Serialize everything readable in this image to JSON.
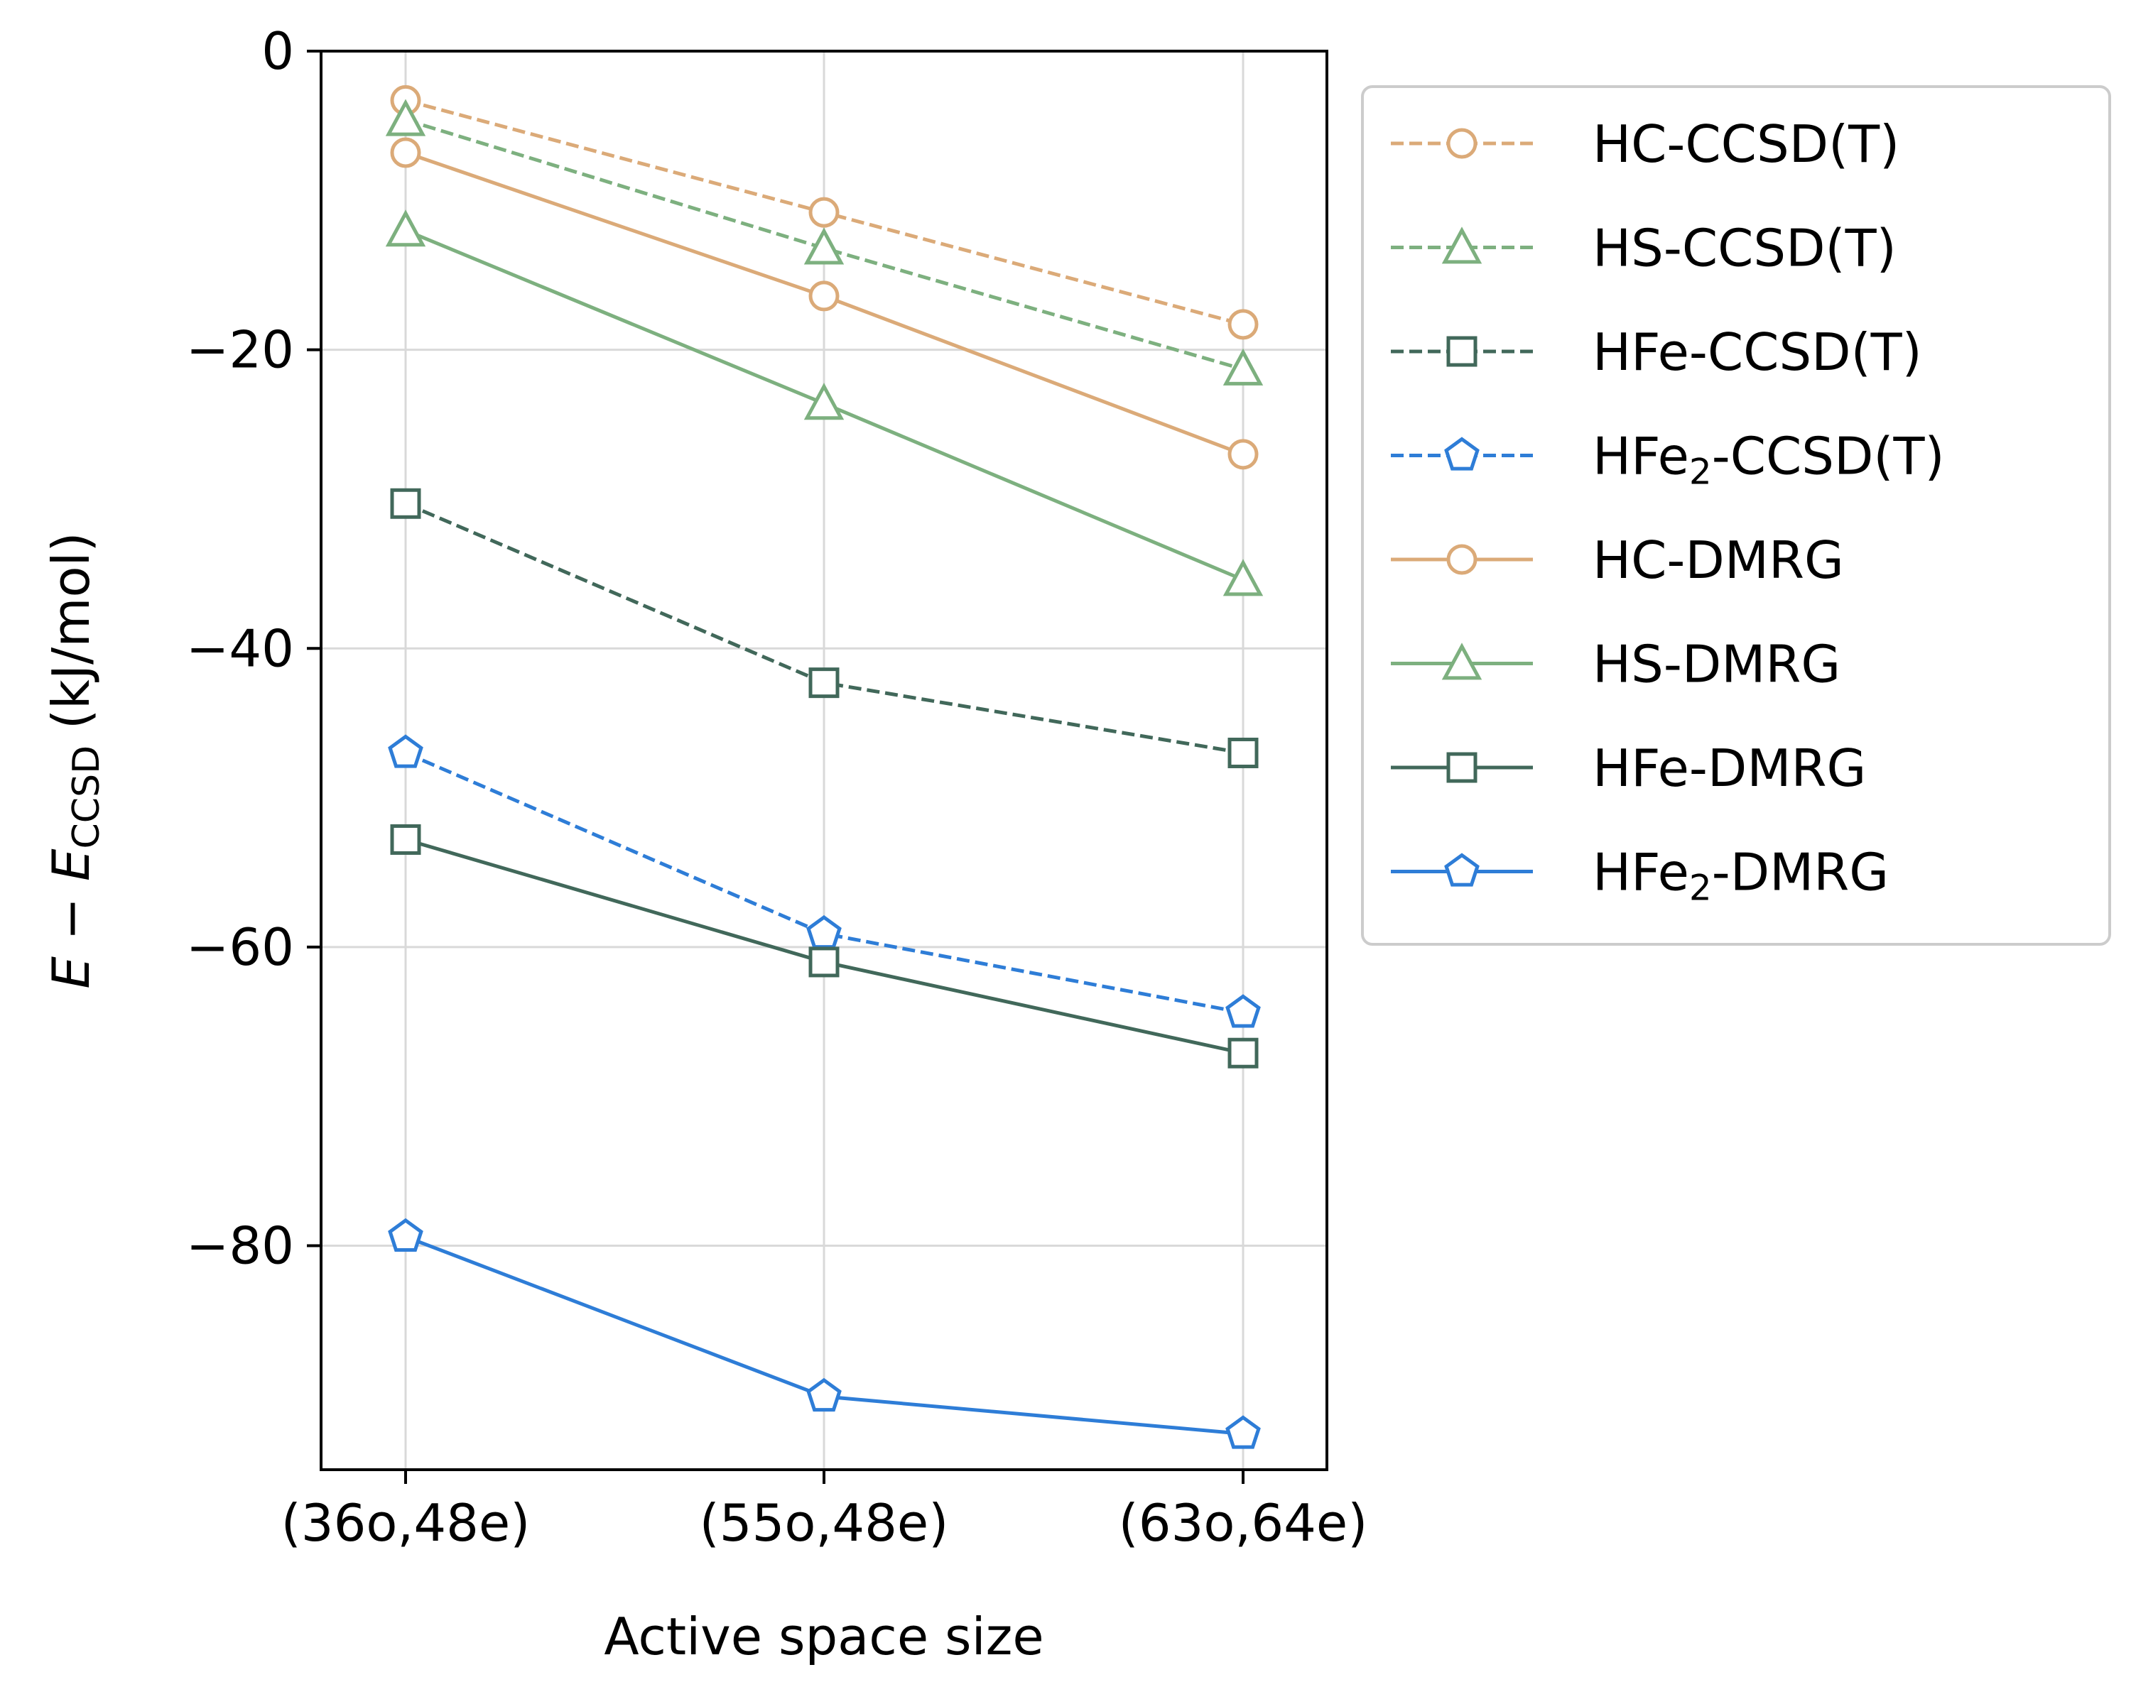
{
  "chart_data": {
    "type": "line",
    "title": "",
    "xlabel": "Active space size",
    "ylabel": {
      "italic_E": "E",
      "minus": " − ",
      "italic_E2": "E",
      "sub": "CCSD",
      "unit": " (kJ/mol)"
    },
    "categories": [
      "(36o,48e)",
      "(55o,48e)",
      "(63o,64e)"
    ],
    "ylim": [
      -95,
      0
    ],
    "yticks": [
      0,
      -20,
      -40,
      -60,
      -80
    ],
    "ytick_labels": [
      "0",
      "−20",
      "−40",
      "−60",
      "−80"
    ],
    "grid": true,
    "legend_position": "outside-top-right",
    "series": [
      {
        "name": "HC-CCSD(T)",
        "label_main": "HC-CCSD(T)",
        "label_sub": "",
        "label_rest": "",
        "values": [
          -3.3,
          -10.8,
          -18.3
        ],
        "color": "#DBAA78",
        "dashed": true,
        "marker": "circle"
      },
      {
        "name": "HS-CCSD(T)",
        "label_main": "HS-CCSD(T)",
        "label_sub": "",
        "label_rest": "",
        "values": [
          -4.6,
          -13.2,
          -21.3
        ],
        "color": "#7DB07F",
        "dashed": true,
        "marker": "triangle"
      },
      {
        "name": "HFe-CCSD(T)",
        "label_main": "HFe-CCSD(T)",
        "label_sub": "",
        "label_rest": "",
        "values": [
          -30.3,
          -42.3,
          -47.0
        ],
        "color": "#41685A",
        "dashed": true,
        "marker": "square"
      },
      {
        "name": "HFe2-CCSD(T)",
        "label_main": "HFe",
        "label_sub": "2",
        "label_rest": "-CCSD(T)",
        "values": [
          -47.0,
          -59.1,
          -64.4
        ],
        "color": "#2E7DD7",
        "dashed": true,
        "marker": "pentagon"
      },
      {
        "name": "HC-DMRG",
        "label_main": "HC-DMRG",
        "label_sub": "",
        "label_rest": "",
        "values": [
          -6.8,
          -16.4,
          -27.0
        ],
        "color": "#DBAA78",
        "dashed": false,
        "marker": "circle"
      },
      {
        "name": "HS-DMRG",
        "label_main": "HS-DMRG",
        "label_sub": "",
        "label_rest": "",
        "values": [
          -12.0,
          -23.6,
          -35.4
        ],
        "color": "#7DB07F",
        "dashed": false,
        "marker": "triangle"
      },
      {
        "name": "HFe-DMRG",
        "label_main": "HFe-DMRG",
        "label_sub": "",
        "label_rest": "",
        "values": [
          -52.8,
          -61.0,
          -67.1
        ],
        "color": "#41685A",
        "dashed": false,
        "marker": "square"
      },
      {
        "name": "HFe2-DMRG",
        "label_main": "HFe",
        "label_sub": "2",
        "label_rest": "-DMRG",
        "values": [
          -79.4,
          -90.1,
          -92.6
        ],
        "color": "#2E7DD7",
        "dashed": false,
        "marker": "pentagon"
      }
    ]
  }
}
